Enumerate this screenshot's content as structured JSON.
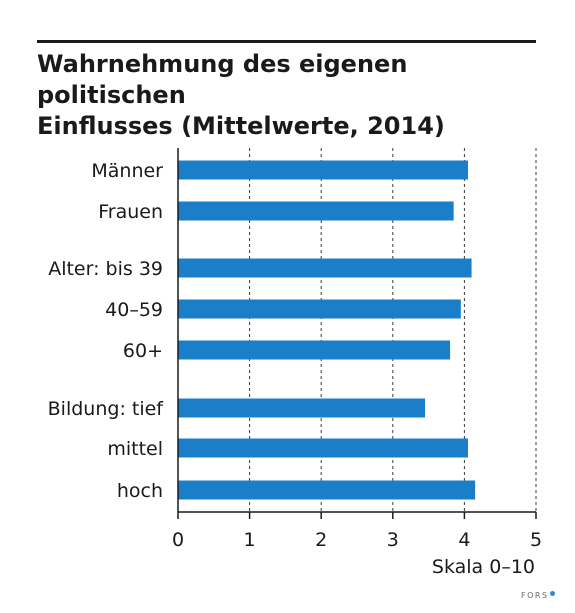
{
  "chart_data": {
    "type": "bar",
    "orientation": "horizontal",
    "title": "Wahrnehmung des eigenen politischen\nEinflusses (Mittelwerte, 2014)",
    "categories": [
      "Männer",
      "Frauen",
      "Alter: bis 39",
      "40–59",
      "60+",
      "Bildung: tief",
      "mittel",
      "hoch"
    ],
    "values": [
      4.05,
      3.85,
      4.1,
      3.95,
      3.8,
      3.45,
      4.05,
      4.15
    ],
    "groups": [
      [
        0,
        1
      ],
      [
        2,
        3,
        4
      ],
      [
        5,
        6,
        7
      ]
    ],
    "xticks": [
      "0",
      "1",
      "2",
      "3",
      "4",
      "5"
    ],
    "xlim": [
      0,
      5
    ],
    "xlabel": "Skala 0–10",
    "grid": "vertical dashed",
    "bar_color": "#1a7fc8"
  },
  "source": {
    "logo_text": "FORS"
  }
}
